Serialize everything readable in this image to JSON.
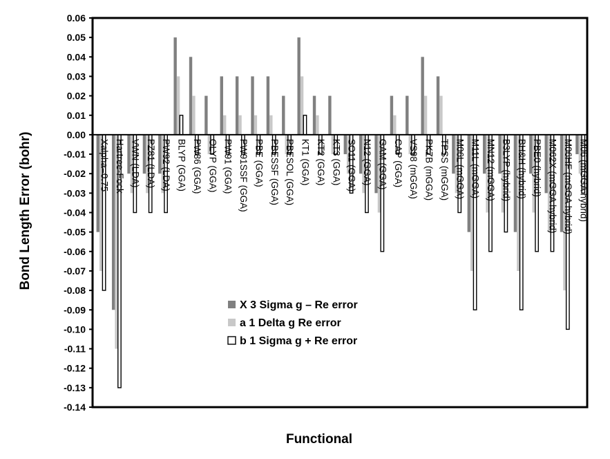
{
  "chart_data": {
    "type": "bar",
    "title": "",
    "xlabel": "Functional",
    "ylabel": "Bond Length Error (bohr)",
    "ylim": [
      -0.14,
      0.06
    ],
    "ytick_step": 0.01,
    "grid": false,
    "legend_position": "lower-center",
    "categories": [
      "Xalpha=0.75",
      "Hartree-Fock",
      "VWN (LDA)",
      "PZ81 (LDA)",
      "PW92 (LDA)",
      "BLYP (GGA)",
      "PW86 (GGA)",
      "OLYP (GGA)",
      "PW91 (GGA)",
      "PW91SSF (GGA)",
      "PBE (GGA)",
      "PBESSF (GGA)",
      "PBESOL (GGA)",
      "KT1 (GGA)",
      "KT2 (GGA)",
      "KT3 (GGA)",
      "SO11 (GGA)",
      "N12 (GGA)",
      "GAM (GGA)",
      "CAP (GGA)",
      "VS98 (mGGA)",
      "PKZB (mGGA)",
      "TPSS (mGGA)",
      "M06L (mGGA)",
      "M11L (mGGA)",
      "MN12 (mGGA)",
      "B3LYP (hybrid)",
      "BH&H (hybrid)",
      "PBE0 (hybrid)",
      "M062X (mGGA hybrid)",
      "M06HF (mGGA hybrid)",
      "M06 (mGGA hybrid)"
    ],
    "series": [
      {
        "name": "X 3 Sigma g – Re error",
        "color": "#808080",
        "values": [
          -0.05,
          -0.09,
          -0.02,
          -0.02,
          -0.02,
          0.05,
          0.04,
          0.02,
          0.03,
          0.03,
          0.03,
          0.03,
          0.02,
          0.05,
          0.02,
          0.02,
          -0.01,
          -0.02,
          -0.03,
          0.02,
          0.02,
          0.04,
          0.03,
          -0.02,
          -0.05,
          -0.02,
          -0.02,
          -0.05,
          -0.02,
          -0.03,
          -0.05,
          -0.01
        ]
      },
      {
        "name": "a 1 Delta g Re error",
        "color": "#c8c8c8",
        "values": [
          -0.07,
          -0.11,
          -0.03,
          -0.03,
          -0.03,
          0.03,
          0.02,
          -0.01,
          0.01,
          0.01,
          0.01,
          0.01,
          -0.01,
          0.03,
          0.01,
          -0.01,
          -0.02,
          -0.03,
          -0.04,
          0.01,
          -0.01,
          0.02,
          0.02,
          -0.03,
          -0.07,
          -0.04,
          -0.04,
          -0.07,
          -0.04,
          -0.05,
          -0.08,
          -0.02
        ]
      },
      {
        "name": "b 1 Sigma g + Re error",
        "color": "#ffffff",
        "values": [
          -0.08,
          -0.13,
          -0.04,
          -0.04,
          -0.04,
          0.01,
          -0.01,
          -0.01,
          -0.01,
          -0.01,
          -0.01,
          -0.01,
          -0.01,
          0.01,
          -0.01,
          -0.01,
          -0.03,
          -0.04,
          -0.06,
          -0.01,
          -0.01,
          -0.01,
          -0.01,
          -0.04,
          -0.09,
          -0.06,
          -0.05,
          -0.09,
          -0.06,
          -0.06,
          -0.1,
          -0.03
        ]
      }
    ]
  }
}
